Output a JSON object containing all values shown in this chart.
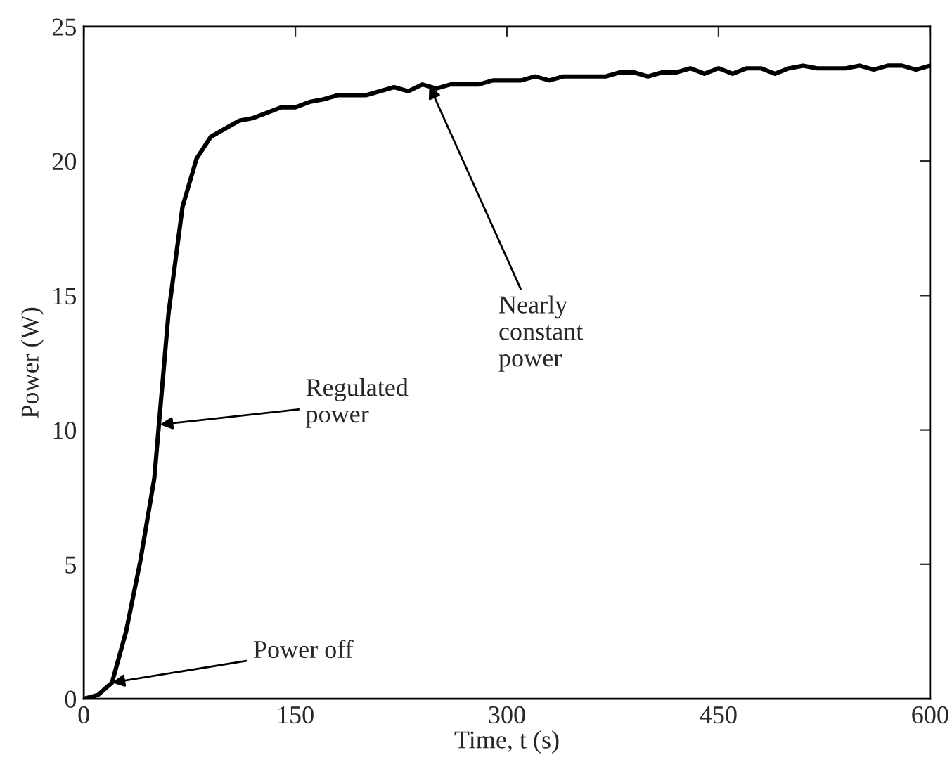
{
  "chart_data": {
    "type": "line",
    "xlabel": "Time, t (s)",
    "ylabel": "Power (W)",
    "xlim": [
      0,
      600
    ],
    "xticks": [
      0,
      150,
      300,
      450,
      600
    ],
    "ylim": [
      0,
      25
    ],
    "yticks": [
      0,
      5,
      10,
      15,
      20,
      25
    ],
    "grid": false,
    "legend": false,
    "marker": "none",
    "line_style": "solid",
    "series": [
      {
        "color": "#000000",
        "x": [
          0,
          10,
          20,
          30,
          40,
          50,
          60,
          70,
          80,
          90,
          100,
          110,
          120,
          130,
          140,
          150,
          160,
          170,
          180,
          200,
          220,
          230,
          240,
          250,
          260,
          280,
          290,
          310,
          320,
          330,
          340,
          370,
          380,
          390,
          400,
          410,
          420,
          430,
          440,
          450,
          460,
          470,
          480,
          490,
          500,
          510,
          520,
          540,
          550,
          560,
          570,
          580,
          590,
          600
        ],
        "values": [
          0,
          0.14,
          0.6,
          2.5,
          5.1,
          8.2,
          14.3,
          18.3,
          20.1,
          20.9,
          21.2,
          21.5,
          21.6,
          21.8,
          22.0,
          22.0,
          22.2,
          22.3,
          22.45,
          22.45,
          22.75,
          22.6,
          22.85,
          22.7,
          22.85,
          22.85,
          23.0,
          23.0,
          23.15,
          23.0,
          23.15,
          23.15,
          23.3,
          23.3,
          23.15,
          23.3,
          23.3,
          23.45,
          23.25,
          23.45,
          23.25,
          23.45,
          23.45,
          23.25,
          23.45,
          23.55,
          23.45,
          23.45,
          23.55,
          23.4,
          23.55,
          23.55,
          23.4,
          23.55
        ]
      }
    ],
    "annotations": [
      {
        "text": "Power off",
        "x": 20,
        "y": 0.6
      },
      {
        "text": "Regulated\npower",
        "x": 54,
        "y": 10.2
      },
      {
        "text": "Nearly\nconstant\npower",
        "x": 245,
        "y": 22.8
      }
    ]
  }
}
